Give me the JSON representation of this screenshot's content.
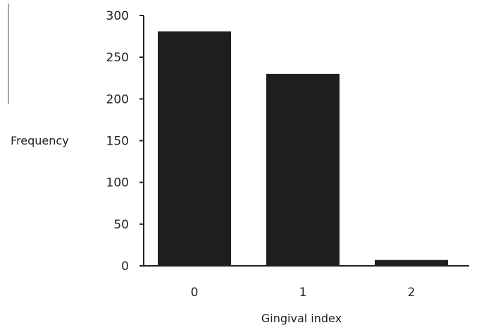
{
  "chart_data": {
    "type": "bar",
    "title": "",
    "xlabel": "Gingival index",
    "ylabel": "Frequency",
    "categories": [
      "0",
      "1",
      "2"
    ],
    "values": [
      281,
      230,
      7
    ],
    "ylim": [
      0,
      300
    ],
    "yticks": [
      "0",
      "50",
      "100",
      "150",
      "200",
      "250",
      "300"
    ],
    "grid": false,
    "legend": "none",
    "colors": {
      "bar": "#1e1e1e",
      "axis": "#222222"
    }
  }
}
